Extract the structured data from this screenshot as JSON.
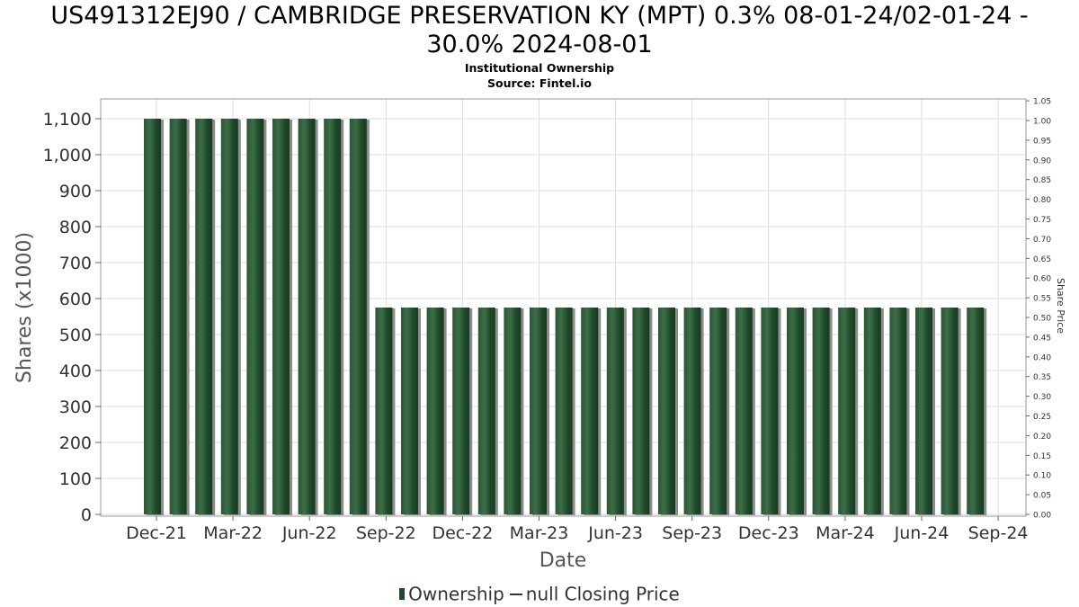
{
  "title_line1": "US491312EJ90 / CAMBRIDGE PRESERVATION KY (MPT) 0.3% 08-01-24/02-01-24 -",
  "title_line2": "30.0% 2024-08-01",
  "subtitle": "Institutional Ownership",
  "source": "Source: Fintel.io",
  "legend": {
    "ownership": "Ownership",
    "price": "null Closing Price"
  },
  "colors": {
    "bar": "#1f4a2a",
    "bar_highlight": "#3d6e48",
    "bar_shadow": "#8c8c8c",
    "grid": "#dddddd"
  },
  "chart_data": {
    "type": "bar",
    "xlabel": "Date",
    "ylabel": "Shares (x1000)",
    "y2label": "Share Price",
    "ylim": [
      0,
      1150
    ],
    "y2lim": [
      0,
      1.05
    ],
    "grid": true,
    "legend_position": "bottom",
    "yticks": [
      "0",
      "100",
      "200",
      "300",
      "400",
      "500",
      "600",
      "700",
      "800",
      "900",
      "1,000",
      "1,100"
    ],
    "y2ticks": [
      "0.00",
      "0.05",
      "0.10",
      "0.15",
      "0.20",
      "0.25",
      "0.30",
      "0.35",
      "0.40",
      "0.45",
      "0.50",
      "0.55",
      "0.60",
      "0.65",
      "0.70",
      "0.75",
      "0.80",
      "0.85",
      "0.90",
      "0.95",
      "1.00",
      "1.05"
    ],
    "xticks": [
      "Dec-21",
      "Mar-22",
      "Jun-22",
      "Sep-22",
      "Dec-22",
      "Mar-23",
      "Jun-23",
      "Sep-23",
      "Dec-23",
      "Mar-24",
      "Jun-24",
      "Sep-24"
    ],
    "series": [
      {
        "name": "Ownership",
        "values": [
          1100,
          1100,
          1100,
          1100,
          1100,
          1100,
          1100,
          1100,
          1100,
          575,
          575,
          575,
          575,
          575,
          575,
          575,
          575,
          575,
          575,
          575,
          575,
          575,
          575,
          575,
          575,
          575,
          575,
          575,
          575,
          575,
          575,
          575,
          575
        ]
      }
    ]
  }
}
